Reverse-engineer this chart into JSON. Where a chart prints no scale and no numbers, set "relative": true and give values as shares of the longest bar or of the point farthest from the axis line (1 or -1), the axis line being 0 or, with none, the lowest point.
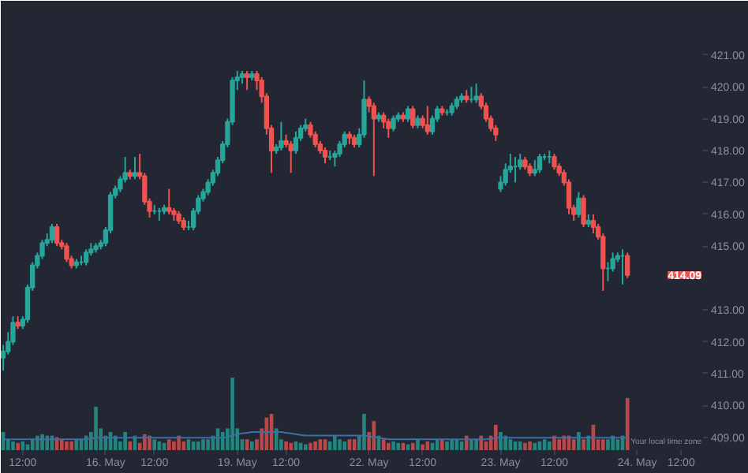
{
  "chart_data": [
    {
      "type": "candlestick",
      "categories": [
        null,
        null,
        null,
        null,
        "12:00",
        null,
        null,
        null,
        null,
        null,
        null,
        null,
        null,
        null,
        null,
        null,
        null,
        null,
        null,
        null,
        null,
        "16. May",
        null,
        null,
        null,
        null,
        null,
        null,
        null,
        null,
        null,
        "12:00",
        null,
        null,
        null,
        null,
        null,
        null,
        null,
        null,
        null,
        null,
        null,
        null,
        null,
        null,
        null,
        null,
        "19. May",
        null,
        null,
        null,
        null,
        null,
        null,
        null,
        null,
        null,
        "12:00",
        null,
        null,
        null,
        null,
        null,
        null,
        null,
        null,
        null,
        null,
        null,
        null,
        null,
        null,
        null,
        null,
        "22. May",
        null,
        null,
        null,
        null,
        null,
        null,
        null,
        null,
        null,
        null,
        "12:00",
        null,
        null,
        null,
        null,
        null,
        null,
        null,
        null,
        null,
        null,
        null,
        null,
        null,
        null,
        null,
        "23. May",
        null,
        null,
        null,
        null,
        null,
        null,
        null,
        null,
        null,
        null,
        "12:00",
        null,
        null,
        null,
        null,
        null,
        null,
        null,
        null,
        null,
        null,
        null,
        null,
        null,
        null,
        null,
        null,
        "24. May",
        null,
        null,
        null,
        null,
        null,
        null,
        null,
        null,
        "12:00"
      ],
      "ohlc": [
        [
          411.5,
          411.9,
          411.1,
          411.7
        ],
        [
          411.7,
          412.3,
          411.6,
          412.0
        ],
        [
          412.0,
          412.8,
          411.9,
          412.6
        ],
        [
          412.6,
          412.8,
          412.4,
          412.5
        ],
        [
          412.5,
          412.8,
          412.4,
          412.7
        ],
        [
          412.7,
          413.8,
          412.6,
          413.7
        ],
        [
          413.7,
          414.5,
          413.6,
          414.4
        ],
        [
          414.4,
          414.8,
          414.3,
          414.7
        ],
        [
          414.7,
          415.2,
          414.6,
          415.1
        ],
        [
          415.1,
          415.4,
          415.0,
          415.2
        ],
        [
          415.2,
          415.7,
          415.1,
          415.6
        ],
        [
          415.6,
          415.7,
          415.0,
          415.1
        ],
        [
          415.1,
          415.2,
          414.9,
          415.0
        ],
        [
          415.0,
          415.1,
          414.5,
          414.6
        ],
        [
          414.6,
          414.7,
          414.3,
          414.4
        ],
        [
          414.4,
          414.6,
          414.3,
          414.5
        ],
        [
          414.5,
          414.7,
          414.4,
          414.5
        ],
        [
          414.5,
          414.9,
          414.4,
          414.8
        ],
        [
          414.8,
          415.1,
          414.7,
          414.9
        ],
        [
          414.9,
          415.1,
          414.8,
          415.0
        ],
        [
          415.0,
          415.2,
          414.9,
          415.1
        ],
        [
          415.1,
          415.6,
          415.0,
          415.5
        ],
        [
          415.5,
          416.7,
          415.4,
          416.6
        ],
        [
          416.6,
          416.9,
          416.5,
          416.8
        ],
        [
          416.8,
          417.2,
          416.7,
          417.1
        ],
        [
          417.1,
          417.8,
          417.0,
          417.3
        ],
        [
          417.3,
          417.4,
          417.1,
          417.2
        ],
        [
          417.2,
          417.8,
          417.1,
          417.3
        ],
        [
          417.3,
          417.9,
          417.1,
          417.2
        ],
        [
          417.2,
          417.3,
          416.3,
          416.4
        ],
        [
          416.4,
          416.5,
          415.9,
          416.1
        ],
        [
          416.1,
          416.3,
          416.0,
          416.1
        ],
        [
          416.1,
          416.2,
          415.8,
          416.1
        ],
        [
          416.1,
          416.3,
          416.0,
          416.2
        ],
        [
          416.2,
          416.8,
          416.0,
          416.1
        ],
        [
          416.1,
          416.2,
          415.8,
          416.0
        ],
        [
          416.0,
          416.1,
          415.7,
          415.8
        ],
        [
          415.8,
          415.9,
          415.5,
          415.6
        ],
        [
          415.6,
          415.8,
          415.5,
          415.6
        ],
        [
          415.6,
          416.2,
          415.5,
          416.1
        ],
        [
          416.1,
          416.6,
          416.0,
          416.5
        ],
        [
          416.5,
          416.8,
          416.4,
          416.7
        ],
        [
          416.7,
          417.1,
          416.6,
          417.0
        ],
        [
          417.0,
          417.4,
          416.9,
          417.3
        ],
        [
          417.3,
          417.8,
          417.2,
          417.7
        ],
        [
          417.7,
          418.3,
          417.6,
          418.2
        ],
        [
          418.2,
          419.0,
          418.1,
          418.9
        ],
        [
          418.9,
          420.3,
          418.8,
          420.2
        ],
        [
          420.2,
          420.5,
          419.9,
          420.3
        ],
        [
          420.3,
          420.5,
          420.1,
          420.4
        ],
        [
          420.4,
          420.5,
          419.9,
          420.3
        ],
        [
          420.3,
          420.5,
          420.2,
          420.4
        ],
        [
          420.4,
          420.5,
          419.9,
          420.2
        ],
        [
          420.2,
          420.3,
          419.5,
          419.7
        ],
        [
          419.7,
          419.8,
          418.5,
          418.7
        ],
        [
          418.7,
          418.8,
          417.3,
          418.0
        ],
        [
          418.0,
          418.2,
          417.9,
          418.1
        ],
        [
          418.1,
          418.9,
          418.0,
          418.3
        ],
        [
          418.3,
          418.5,
          418.1,
          418.2
        ],
        [
          418.2,
          418.3,
          417.3,
          418.0
        ],
        [
          418.0,
          418.6,
          417.9,
          418.4
        ],
        [
          418.4,
          418.8,
          418.3,
          418.7
        ],
        [
          418.7,
          419.0,
          418.6,
          418.8
        ],
        [
          418.8,
          418.9,
          418.4,
          418.5
        ],
        [
          418.5,
          418.6,
          418.1,
          418.2
        ],
        [
          418.2,
          418.3,
          417.9,
          418.0
        ],
        [
          418.0,
          418.1,
          417.6,
          417.8
        ],
        [
          417.8,
          418.0,
          417.7,
          417.8
        ],
        [
          417.8,
          418.0,
          417.5,
          417.9
        ],
        [
          417.9,
          418.3,
          417.8,
          418.2
        ],
        [
          418.2,
          418.6,
          418.1,
          418.5
        ],
        [
          418.5,
          418.6,
          418.2,
          418.4
        ],
        [
          418.4,
          418.5,
          418.1,
          418.2
        ],
        [
          418.2,
          418.7,
          418.1,
          418.5
        ],
        [
          418.5,
          420.2,
          418.4,
          419.6
        ],
        [
          419.6,
          419.7,
          419.2,
          419.4
        ],
        [
          419.4,
          419.5,
          417.2,
          419.0
        ],
        [
          419.0,
          419.2,
          418.9,
          419.1
        ],
        [
          419.1,
          419.2,
          418.7,
          418.9
        ],
        [
          418.9,
          419.0,
          418.4,
          418.7
        ],
        [
          418.7,
          419.1,
          418.6,
          419.0
        ],
        [
          419.0,
          419.2,
          418.9,
          419.1
        ],
        [
          419.1,
          419.2,
          418.9,
          419.0
        ],
        [
          419.0,
          419.4,
          418.9,
          419.3
        ],
        [
          419.3,
          419.4,
          418.7,
          418.8
        ],
        [
          418.8,
          419.1,
          418.7,
          419.0
        ],
        [
          419.0,
          419.1,
          418.7,
          418.8
        ],
        [
          418.8,
          419.4,
          418.5,
          418.6
        ],
        [
          418.6,
          419.1,
          418.5,
          419.0
        ],
        [
          419.0,
          419.4,
          418.9,
          419.3
        ],
        [
          419.3,
          419.4,
          419.1,
          419.2
        ],
        [
          419.2,
          419.3,
          419.1,
          419.2
        ],
        [
          419.2,
          419.5,
          419.1,
          419.4
        ],
        [
          419.4,
          419.7,
          419.3,
          419.6
        ],
        [
          419.6,
          419.8,
          419.5,
          419.7
        ],
        [
          419.7,
          419.9,
          419.5,
          419.6
        ],
        [
          419.6,
          420.0,
          419.5,
          419.6
        ],
        [
          419.6,
          420.1,
          419.5,
          419.7
        ],
        [
          419.7,
          419.8,
          419.3,
          419.4
        ],
        [
          419.4,
          419.5,
          418.9,
          419.0
        ],
        [
          419.0,
          419.1,
          418.6,
          418.7
        ],
        [
          418.7,
          418.8,
          418.3,
          418.5
        ],
        [
          416.8,
          417.2,
          416.7,
          417.0
        ],
        [
          417.0,
          417.6,
          416.9,
          417.4
        ],
        [
          417.4,
          417.9,
          417.3,
          417.5
        ],
        [
          417.5,
          417.8,
          417.0,
          417.5
        ],
        [
          417.5,
          417.9,
          417.4,
          417.7
        ],
        [
          417.7,
          417.8,
          417.4,
          417.5
        ],
        [
          417.5,
          417.6,
          417.2,
          417.3
        ],
        [
          417.3,
          417.7,
          417.2,
          417.4
        ],
        [
          417.4,
          417.9,
          417.3,
          417.8
        ],
        [
          417.8,
          417.9,
          417.7,
          417.8
        ],
        [
          417.8,
          418.0,
          417.6,
          417.8
        ],
        [
          417.8,
          417.9,
          417.4,
          417.5
        ],
        [
          417.5,
          417.6,
          417.2,
          417.3
        ],
        [
          417.3,
          417.4,
          416.9,
          417.0
        ],
        [
          417.0,
          417.1,
          416.0,
          416.2
        ],
        [
          416.2,
          416.3,
          415.8,
          416.0
        ],
        [
          416.0,
          416.7,
          415.9,
          416.5
        ],
        [
          416.5,
          416.6,
          415.6,
          415.7
        ],
        [
          415.7,
          416.0,
          415.6,
          415.8
        ],
        [
          415.8,
          416.0,
          415.4,
          415.6
        ],
        [
          415.6,
          415.7,
          415.2,
          415.3
        ],
        [
          415.3,
          415.4,
          413.6,
          414.3
        ],
        [
          414.3,
          414.5,
          413.9,
          414.3
        ],
        [
          414.3,
          414.8,
          414.2,
          414.6
        ],
        [
          414.6,
          414.8,
          414.5,
          414.7
        ],
        [
          414.7,
          414.9,
          413.8,
          414.7
        ],
        [
          414.7,
          414.8,
          414.0,
          414.09
        ],
        null,
        null,
        null,
        null,
        null,
        null,
        null,
        null,
        null,
        null,
        null
      ],
      "colors": [
        "#26a69a",
        "#26a69a",
        "#26a69a",
        "#ef5350",
        "#26a69a",
        "#26a69a",
        "#26a69a",
        "#26a69a",
        "#26a69a",
        "#26a69a",
        "#26a69a",
        "#ef5350",
        "#ef5350",
        "#ef5350",
        "#ef5350",
        "#26a69a",
        "#26a69a",
        "#26a69a",
        "#26a69a",
        "#26a69a",
        "#26a69a",
        "#26a69a",
        "#26a69a",
        "#26a69a",
        "#26a69a",
        "#26a69a",
        "#ef5350",
        "#26a69a",
        "#ef5350",
        "#ef5350",
        "#ef5350",
        "#26a69a",
        "#26a69a",
        "#26a69a",
        "#ef5350",
        "#ef5350",
        "#ef5350",
        "#ef5350",
        "#26a69a",
        "#26a69a",
        "#26a69a",
        "#26a69a",
        "#26a69a",
        "#26a69a",
        "#26a69a",
        "#26a69a",
        "#26a69a",
        "#26a69a",
        "#26a69a",
        "#26a69a",
        "#ef5350",
        "#26a69a",
        "#ef5350",
        "#ef5350",
        "#ef5350",
        "#ef5350",
        "#26a69a",
        "#26a69a",
        "#ef5350",
        "#ef5350",
        "#26a69a",
        "#26a69a",
        "#26a69a",
        "#ef5350",
        "#ef5350",
        "#ef5350",
        "#ef5350",
        "#26a69a",
        "#26a69a",
        "#26a69a",
        "#26a69a",
        "#ef5350",
        "#ef5350",
        "#26a69a",
        "#26a69a",
        "#ef5350",
        "#ef5350",
        "#26a69a",
        "#ef5350",
        "#ef5350",
        "#26a69a",
        "#26a69a",
        "#ef5350",
        "#26a69a",
        "#ef5350",
        "#26a69a",
        "#ef5350",
        "#ef5350",
        "#26a69a",
        "#26a69a",
        "#ef5350",
        "#26a69a",
        "#26a69a",
        "#26a69a",
        "#26a69a",
        "#ef5350",
        "#26a69a",
        "#26a69a",
        "#ef5350",
        "#ef5350",
        "#ef5350",
        "#ef5350",
        "#26a69a",
        "#26a69a",
        "#26a69a",
        "#26a69a",
        "#26a69a",
        "#ef5350",
        "#ef5350",
        "#26a69a",
        "#26a69a",
        "#26a69a",
        "#26a69a",
        "#ef5350",
        "#ef5350",
        "#ef5350",
        "#ef5350",
        "#ef5350",
        "#26a69a",
        "#ef5350",
        "#26a69a",
        "#ef5350",
        "#ef5350",
        "#ef5350",
        "#26a69a",
        "#26a69a",
        "#26a69a",
        "#26a69a",
        "#ef5350",
        null,
        null,
        null,
        null,
        null,
        null,
        null,
        null,
        null,
        null,
        null
      ],
      "ylim": [
        408.6,
        422.7
      ],
      "tick_labels": "y",
      "yticks": [
        {
          "value": 409,
          "label": "409.00"
        },
        {
          "value": 410,
          "label": "410.00"
        },
        {
          "value": 411,
          "label": "411.00"
        },
        {
          "value": 412,
          "label": "412.00"
        },
        {
          "value": 413,
          "label": "413.00"
        },
        {
          "value": 415,
          "label": "415.00"
        },
        {
          "value": 416,
          "label": "416.00"
        },
        {
          "value": 417,
          "label": "417.00"
        },
        {
          "value": 418,
          "label": "418.00"
        },
        {
          "value": 419,
          "label": "419.00"
        },
        {
          "value": 420,
          "label": "420.00"
        },
        {
          "value": 421,
          "label": "421.00"
        }
      ],
      "annotations": [
        "414.09",
        "Your local time zone"
      ]
    },
    {
      "type": "bar",
      "relative": true,
      "tick_labels": "x",
      "series": [
        {
          "type": "bar",
          "colors": [
            "#26a69a",
            "#26a69a",
            "#26a69a",
            "#ef5350",
            "#26a69a",
            "#26a69a",
            "#26a69a",
            "#26a69a",
            "#26a69a",
            "#26a69a",
            "#26a69a",
            "#ef5350",
            "#ef5350",
            "#ef5350",
            "#ef5350",
            "#26a69a",
            "#26a69a",
            "#26a69a",
            "#26a69a",
            "#26a69a",
            "#26a69a",
            "#26a69a",
            "#26a69a",
            "#26a69a",
            "#26a69a",
            "#26a69a",
            "#ef5350",
            "#26a69a",
            "#ef5350",
            "#ef5350",
            "#ef5350",
            "#26a69a",
            "#26a69a",
            "#26a69a",
            "#ef5350",
            "#ef5350",
            "#ef5350",
            "#ef5350",
            "#26a69a",
            "#26a69a",
            "#26a69a",
            "#26a69a",
            "#26a69a",
            "#26a69a",
            "#26a69a",
            "#26a69a",
            "#26a69a",
            "#26a69a",
            "#26a69a",
            "#26a69a",
            "#ef5350",
            "#26a69a",
            "#ef5350",
            "#ef5350",
            "#ef5350",
            "#ef5350",
            "#26a69a",
            "#26a69a",
            "#ef5350",
            "#ef5350",
            "#26a69a",
            "#26a69a",
            "#26a69a",
            "#ef5350",
            "#ef5350",
            "#ef5350",
            "#ef5350",
            "#26a69a",
            "#26a69a",
            "#26a69a",
            "#26a69a",
            "#ef5350",
            "#ef5350",
            "#26a69a",
            "#26a69a",
            "#ef5350",
            "#ef5350",
            "#26a69a",
            "#ef5350",
            "#ef5350",
            "#26a69a",
            "#26a69a",
            "#ef5350",
            "#26a69a",
            "#ef5350",
            "#26a69a",
            "#ef5350",
            "#ef5350",
            "#26a69a",
            "#26a69a",
            "#ef5350",
            "#26a69a",
            "#26a69a",
            "#26a69a",
            "#26a69a",
            "#ef5350",
            "#26a69a",
            "#26a69a",
            "#ef5350",
            "#ef5350",
            "#ef5350",
            "#ef5350",
            "#26a69a",
            "#26a69a",
            "#26a69a",
            "#26a69a",
            "#26a69a",
            "#ef5350",
            "#ef5350",
            "#26a69a",
            "#26a69a",
            "#26a69a",
            "#26a69a",
            "#ef5350",
            "#ef5350",
            "#ef5350",
            "#ef5350",
            "#ef5350",
            "#26a69a",
            "#ef5350",
            "#26a69a",
            "#ef5350",
            "#ef5350",
            "#ef5350",
            "#26a69a",
            "#26a69a",
            "#26a69a",
            "#26a69a",
            "#ef5350",
            null,
            null,
            null,
            null,
            null,
            null,
            null,
            null,
            null,
            null,
            null
          ],
          "values": [
            0.25,
            0.15,
            0.12,
            0.1,
            0.12,
            0.08,
            0.15,
            0.2,
            0.22,
            0.2,
            0.2,
            0.18,
            0.15,
            0.12,
            0.12,
            0.15,
            0.15,
            0.2,
            0.25,
            0.6,
            0.3,
            0.2,
            0.25,
            0.2,
            0.12,
            0.25,
            0.12,
            0.2,
            0.1,
            0.22,
            0.2,
            0.15,
            0.12,
            0.1,
            0.15,
            0.12,
            0.2,
            0.12,
            0.15,
            0.12,
            0.12,
            0.15,
            0.15,
            0.2,
            0.3,
            0.25,
            0.3,
            1.0,
            0.3,
            0.15,
            0.15,
            0.12,
            0.15,
            0.3,
            0.45,
            0.5,
            0.3,
            0.15,
            0.12,
            0.1,
            0.12,
            0.1,
            0.08,
            0.1,
            0.12,
            0.15,
            0.15,
            0.12,
            0.2,
            0.15,
            0.12,
            0.15,
            0.15,
            0.2,
            0.5,
            0.25,
            0.4,
            0.2,
            0.15,
            0.1,
            0.12,
            0.1,
            0.1,
            0.08,
            0.1,
            0.15,
            0.08,
            0.12,
            0.1,
            0.15,
            0.15,
            0.12,
            0.15,
            0.15,
            0.12,
            0.2,
            0.15,
            0.15,
            0.2,
            0.12,
            0.2,
            0.35,
            0.25,
            0.2,
            0.15,
            0.12,
            0.12,
            0.1,
            0.12,
            0.1,
            0.12,
            0.15,
            0.12,
            0.2,
            0.15,
            0.2,
            0.2,
            0.15,
            0.25,
            0.15,
            0.2,
            0.35,
            0.15,
            0.15,
            0.15,
            0.2,
            0.15,
            0.2,
            0.72,
            null,
            null,
            null,
            null,
            null,
            null,
            null,
            null,
            null,
            null,
            null
          ]
        },
        {
          "type": "line",
          "color": "#3d6fa5",
          "values": [
            0.15,
            0.15,
            0.15,
            0.15,
            0.15,
            0.15,
            0.15,
            0.15,
            0.15,
            0.15,
            0.15,
            0.15,
            0.15,
            0.15,
            0.15,
            0.15,
            0.15,
            0.15,
            0.16,
            0.17,
            0.17,
            0.17,
            0.17,
            0.17,
            0.17,
            0.17,
            0.17,
            0.17,
            0.17,
            0.17,
            0.17,
            0.17,
            0.17,
            0.17,
            0.17,
            0.17,
            0.17,
            0.17,
            0.17,
            0.17,
            0.17,
            0.17,
            0.17,
            0.17,
            0.17,
            0.17,
            0.18,
            0.2,
            0.22,
            0.23,
            0.24,
            0.25,
            0.25,
            0.25,
            0.25,
            0.25,
            0.25,
            0.25,
            0.24,
            0.23,
            0.22,
            0.21,
            0.2,
            0.2,
            0.2,
            0.2,
            0.2,
            0.2,
            0.2,
            0.2,
            0.2,
            0.2,
            0.2,
            0.2,
            0.2,
            0.19,
            0.18,
            0.17,
            0.16,
            0.15,
            0.15,
            0.15,
            0.15,
            0.15,
            0.15,
            0.15,
            0.15,
            0.15,
            0.15,
            0.15,
            0.15,
            0.15,
            0.15,
            0.15,
            0.15,
            0.15,
            0.15,
            0.15,
            0.15,
            0.15,
            0.16,
            0.17,
            0.17,
            0.17,
            0.17,
            0.17,
            0.17,
            0.17,
            0.17,
            0.17,
            0.17,
            0.17,
            0.17,
            0.17,
            0.17,
            0.17,
            0.17,
            0.17,
            0.17,
            0.17,
            0.17,
            0.17,
            0.17,
            0.17,
            0.17,
            0.17,
            0.17,
            0.17,
            0.17,
            null,
            null,
            null,
            null,
            null,
            null,
            null,
            null,
            null,
            null,
            null
          ]
        }
      ]
    }
  ]
}
